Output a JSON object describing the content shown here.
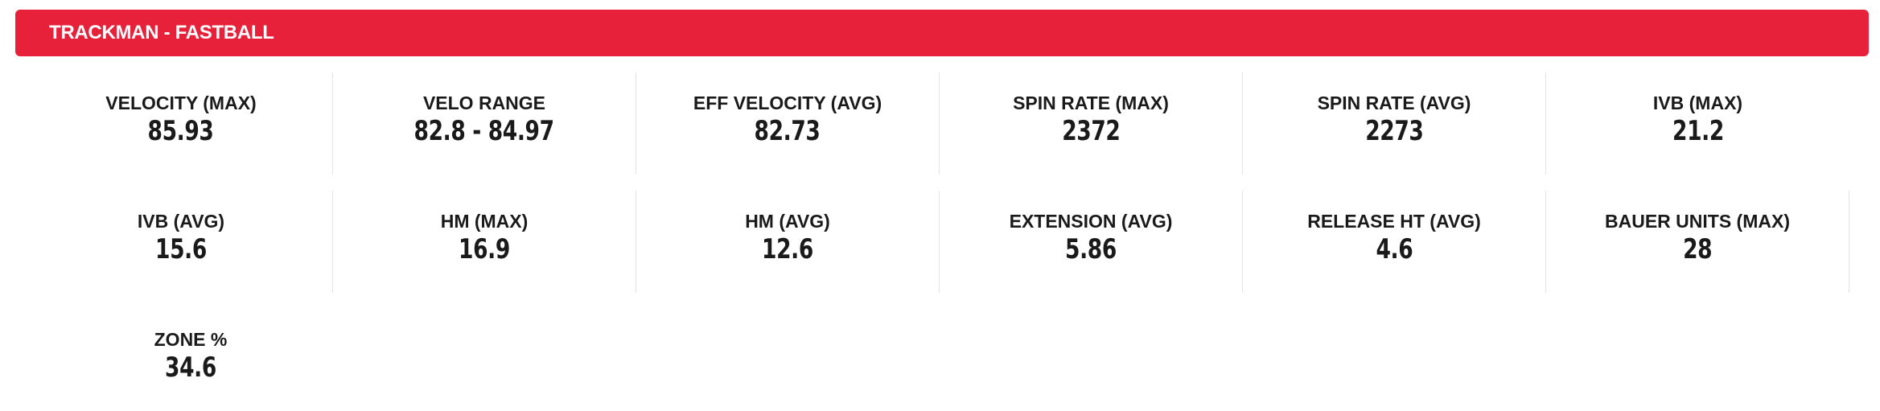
{
  "header": {
    "title": "TRACKMAN - FASTBALL"
  },
  "stats": [
    {
      "label": "VELOCITY (MAX)",
      "value": "85.93"
    },
    {
      "label": "VELO RANGE",
      "value": "82.8 - 84.97"
    },
    {
      "label": "EFF VELOCITY (AVG)",
      "value": "82.73"
    },
    {
      "label": "SPIN RATE (MAX)",
      "value": "2372"
    },
    {
      "label": "SPIN RATE (AVG)",
      "value": "2273"
    },
    {
      "label": "IVB (MAX)",
      "value": "21.2"
    },
    {
      "label": "IVB (AVG)",
      "value": "15.6"
    },
    {
      "label": "HM (MAX)",
      "value": "16.9"
    },
    {
      "label": "HM (AVG)",
      "value": "12.6"
    },
    {
      "label": "EXTENSION (AVG)",
      "value": "5.86"
    },
    {
      "label": "RELEASE HT (AVG)",
      "value": "4.6"
    },
    {
      "label": "BAUER UNITS (MAX)",
      "value": "28"
    },
    {
      "label": "ZONE %",
      "value": "34.6"
    }
  ]
}
